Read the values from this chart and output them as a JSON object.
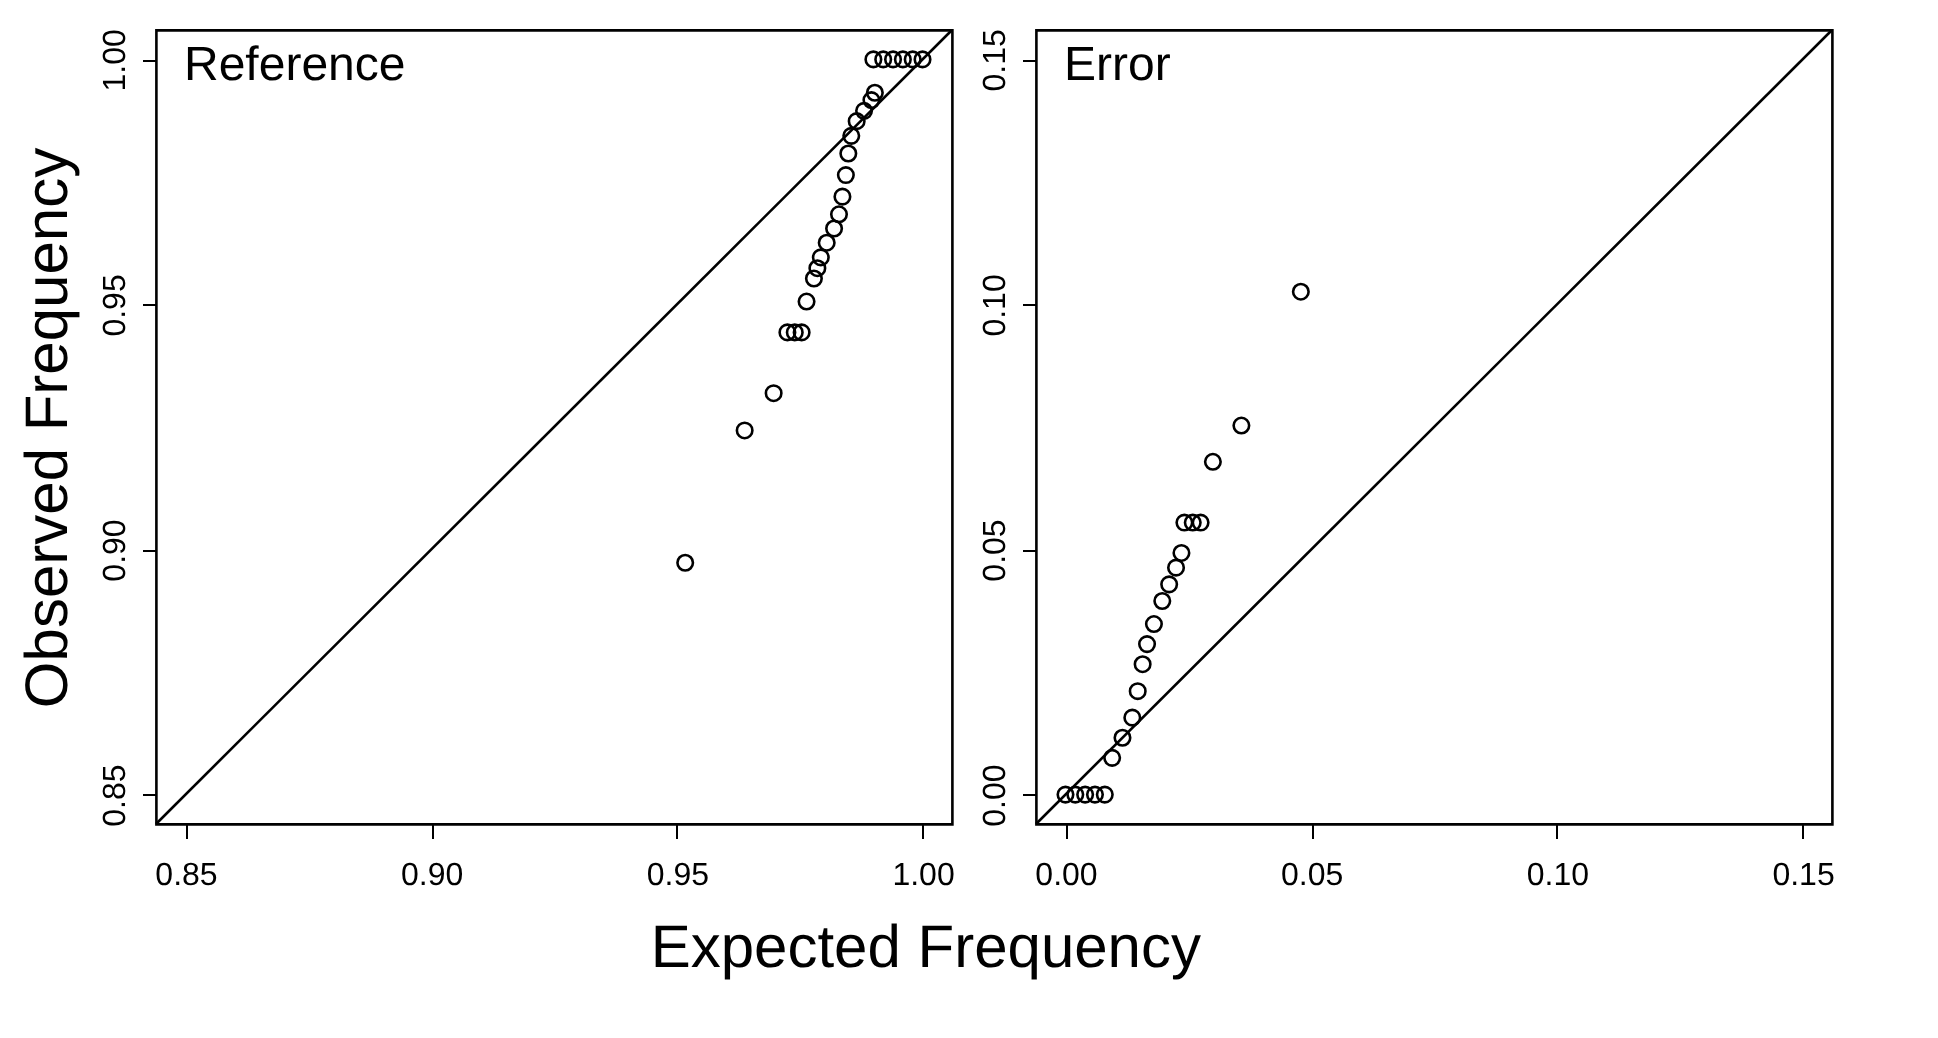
{
  "chart_data": [
    {
      "type": "scatter",
      "title": "Reference",
      "xlabel": "Expected Frequency",
      "ylabel": "Observed Frequency",
      "xlim": [
        0.844,
        1.006
      ],
      "ylim": [
        0.844,
        1.006
      ],
      "xticks": [
        {
          "value": 0.85,
          "label": "0.85"
        },
        {
          "value": 0.9,
          "label": "0.90"
        },
        {
          "value": 0.95,
          "label": "0.95"
        },
        {
          "value": 1,
          "label": "1.00"
        }
      ],
      "yticks": [
        {
          "value": 0.85,
          "label": "0.85"
        },
        {
          "value": 0.9,
          "label": "0.90"
        },
        {
          "value": 0.95,
          "label": "0.95"
        },
        {
          "value": 1,
          "label": "1.00"
        }
      ],
      "series": [
        {
          "marker": "circle",
          "color": "#000000",
          "x": [
            0.9517,
            0.9638,
            0.9697,
            0.9725,
            0.974,
            0.9754,
            0.9764,
            0.9779,
            0.9786,
            0.9793,
            0.9805,
            0.982,
            0.983,
            0.9837,
            0.9844,
            0.9849,
            0.9855,
            0.9866,
            0.9881,
            0.9896,
            0.9903,
            0.99,
            0.992,
            0.994,
            0.996,
            0.998,
            1.0
          ],
          "values": [
            0.8973,
            0.9243,
            0.9319,
            0.9443,
            0.9443,
            0.9443,
            0.9506,
            0.9553,
            0.9574,
            0.9596,
            0.9626,
            0.9655,
            0.9684,
            0.972,
            0.9764,
            0.9808,
            0.9844,
            0.9874,
            0.9895,
            0.9917,
            0.9932,
            1.0,
            1.0,
            1.0,
            1.0,
            1.0,
            1.0
          ]
        },
        {
          "type": "line",
          "marker": "none",
          "color": "#000000",
          "x": [
            0.844,
            1.006
          ],
          "values": [
            0.844,
            1.006
          ]
        }
      ]
    },
    {
      "type": "scatter",
      "title": "Error",
      "xlim": [
        -0.006,
        0.156
      ],
      "ylim": [
        -0.006,
        0.156
      ],
      "xticks": [
        {
          "value": 0,
          "label": "0.00"
        },
        {
          "value": 0.05,
          "label": "0.05"
        },
        {
          "value": 0.1,
          "label": "0.10"
        },
        {
          "value": 0.15,
          "label": "0.15"
        }
      ],
      "yticks": [
        {
          "value": 0,
          "label": "0.00"
        },
        {
          "value": 0.05,
          "label": "0.05"
        },
        {
          "value": 0.1,
          "label": "0.10"
        },
        {
          "value": 0.15,
          "label": "0.15"
        }
      ],
      "series": [
        {
          "marker": "circle",
          "color": "#000000",
          "x": [
            0.0479,
            0.0358,
            0.03,
            0.0242,
            0.0259,
            0.0275,
            0.0236,
            0.0225,
            0.0211,
            0.0197,
            0.018,
            0.0166,
            0.0157,
            0.0147,
            0.0136,
            0.0116,
            0.0095,
            0.0,
            0.002,
            0.004,
            0.006,
            0.008
          ],
          "values": [
            0.1026,
            0.0753,
            0.0679,
            0.0555,
            0.0555,
            0.0555,
            0.0493,
            0.0463,
            0.0429,
            0.0395,
            0.0348,
            0.0307,
            0.0266,
            0.0211,
            0.0157,
            0.0116,
            0.0075,
            0.0,
            0.0,
            0.0,
            0.0,
            0.0
          ]
        },
        {
          "type": "line",
          "marker": "none",
          "color": "#000000",
          "x": [
            -0.006,
            0.156
          ],
          "values": [
            -0.006,
            0.156
          ]
        }
      ]
    }
  ]
}
